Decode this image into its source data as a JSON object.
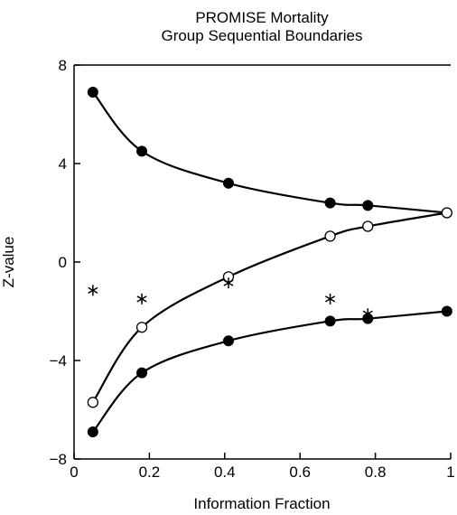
{
  "chart_data": {
    "type": "scatter",
    "title": "PROMISE Mortality",
    "subtitle": "Group Sequential Boundaries",
    "xlabel": "Information Fraction",
    "ylabel": "Z-value",
    "xlim": [
      0,
      1
    ],
    "ylim": [
      -8,
      8
    ],
    "xticks": [
      0,
      0.2,
      0.4,
      0.6,
      0.8,
      1
    ],
    "xtick_labels": [
      "0",
      "0.2",
      "0.4",
      "0.6",
      "0.8",
      "1"
    ],
    "yticks": [
      -8,
      -4,
      0,
      4,
      8
    ],
    "ytick_labels": [
      "−8",
      "−4",
      "0",
      "4",
      "8"
    ],
    "grid": false,
    "series": [
      {
        "marker": "filled-circle",
        "curve": true,
        "x": [
          0.05,
          0.18,
          0.41,
          0.68,
          0.78,
          0.99
        ],
        "y": [
          6.9,
          4.5,
          3.2,
          2.4,
          2.3,
          2.0
        ]
      },
      {
        "marker": "open-circle",
        "curve": true,
        "x": [
          0.05,
          0.18,
          0.41,
          0.68,
          0.78,
          0.99
        ],
        "y": [
          -5.7,
          -2.65,
          -0.6,
          1.05,
          1.45,
          2.0
        ]
      },
      {
        "marker": "filled-circle",
        "curve": true,
        "x": [
          0.05,
          0.18,
          0.41,
          0.68,
          0.78,
          0.99
        ],
        "y": [
          -6.9,
          -4.5,
          -3.2,
          -2.4,
          -2.3,
          -2.0
        ]
      },
      {
        "marker": "asterisk",
        "curve": false,
        "x": [
          0.05,
          0.18,
          0.41,
          0.68,
          0.78
        ],
        "y": [
          -1.15,
          -1.5,
          -0.85,
          -1.5,
          -2.1
        ]
      }
    ]
  }
}
